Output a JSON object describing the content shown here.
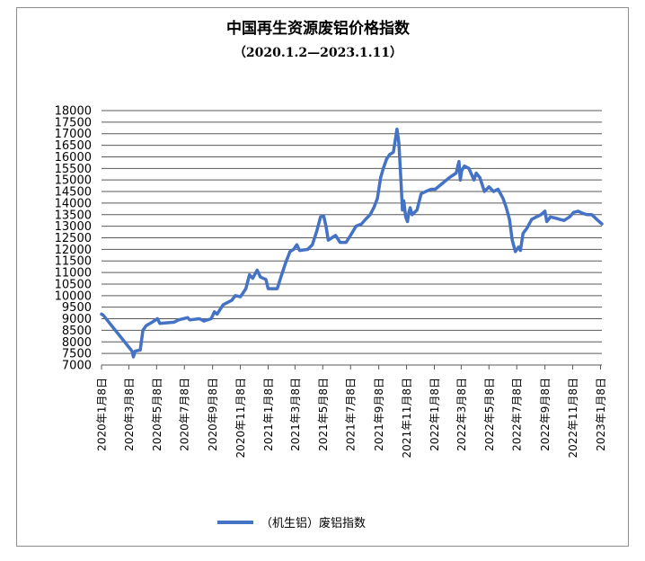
{
  "chart_data": {
    "type": "line",
    "title": "中国再生资源废铝价格指数",
    "subtitle": "（2020.1.2—2023.1.11）",
    "xlabel": "",
    "ylabel": "",
    "ylim": [
      7000,
      18000
    ],
    "yticks": [
      7000,
      7500,
      8000,
      8500,
      9000,
      9500,
      10000,
      10500,
      11000,
      11500,
      12000,
      12500,
      13000,
      13500,
      14000,
      14500,
      15000,
      15500,
      16000,
      16500,
      17000,
      17500,
      18000
    ],
    "x_range": [
      "2020-01-08",
      "2023-01-11"
    ],
    "xticks": [
      {
        "date": "2020-01-08",
        "label": "2020年1月8日"
      },
      {
        "date": "2020-03-08",
        "label": "2020年3月8日"
      },
      {
        "date": "2020-05-08",
        "label": "2020年5月8日"
      },
      {
        "date": "2020-07-08",
        "label": "2020年7月8日"
      },
      {
        "date": "2020-09-08",
        "label": "2020年9月8日"
      },
      {
        "date": "2020-11-08",
        "label": "2020年11月8日"
      },
      {
        "date": "2021-01-08",
        "label": "2021年1月8日"
      },
      {
        "date": "2021-03-08",
        "label": "2021年3月8日"
      },
      {
        "date": "2021-05-08",
        "label": "2021年5月8日"
      },
      {
        "date": "2021-07-08",
        "label": "2021年7月8日"
      },
      {
        "date": "2021-09-08",
        "label": "2021年9月8日"
      },
      {
        "date": "2021-11-08",
        "label": "2021年11月8日"
      },
      {
        "date": "2022-01-08",
        "label": "2022年1月8日"
      },
      {
        "date": "2022-03-08",
        "label": "2022年3月8日"
      },
      {
        "date": "2022-05-08",
        "label": "2022年5月8日"
      },
      {
        "date": "2022-07-08",
        "label": "2022年7月8日"
      },
      {
        "date": "2022-09-08",
        "label": "2022年9月8日"
      },
      {
        "date": "2022-11-08",
        "label": "2022年11月8日"
      },
      {
        "date": "2023-01-08",
        "label": "2023年1月8日"
      }
    ],
    "grid": true,
    "legend_position": "bottom",
    "series": [
      {
        "name": "（机生铝）废铝指数",
        "color": "#4472c4",
        "points": [
          {
            "x": "2020-01-08",
            "y": 9200
          },
          {
            "x": "2020-01-12",
            "y": 9150
          },
          {
            "x": "2020-01-20",
            "y": 8950
          },
          {
            "x": "2020-03-15",
            "y": 7600
          },
          {
            "x": "2020-03-18",
            "y": 7350
          },
          {
            "x": "2020-03-22",
            "y": 7600
          },
          {
            "x": "2020-04-02",
            "y": 7650
          },
          {
            "x": "2020-04-08",
            "y": 8500
          },
          {
            "x": "2020-04-15",
            "y": 8700
          },
          {
            "x": "2020-04-28",
            "y": 8850
          },
          {
            "x": "2020-05-10",
            "y": 9000
          },
          {
            "x": "2020-05-15",
            "y": 8800
          },
          {
            "x": "2020-06-15",
            "y": 8850
          },
          {
            "x": "2020-06-25",
            "y": 8950
          },
          {
            "x": "2020-07-15",
            "y": 9050
          },
          {
            "x": "2020-07-20",
            "y": 8950
          },
          {
            "x": "2020-08-10",
            "y": 9000
          },
          {
            "x": "2020-08-20",
            "y": 8900
          },
          {
            "x": "2020-09-05",
            "y": 9000
          },
          {
            "x": "2020-09-12",
            "y": 9300
          },
          {
            "x": "2020-09-18",
            "y": 9200
          },
          {
            "x": "2020-10-01",
            "y": 9600
          },
          {
            "x": "2020-10-20",
            "y": 9800
          },
          {
            "x": "2020-10-28",
            "y": 10000
          },
          {
            "x": "2020-11-08",
            "y": 9950
          },
          {
            "x": "2020-11-20",
            "y": 10300
          },
          {
            "x": "2020-11-28",
            "y": 10900
          },
          {
            "x": "2020-12-05",
            "y": 10750
          },
          {
            "x": "2020-12-15",
            "y": 11100
          },
          {
            "x": "2020-12-22",
            "y": 10800
          },
          {
            "x": "2021-01-03",
            "y": 10700
          },
          {
            "x": "2021-01-08",
            "y": 10300
          },
          {
            "x": "2021-01-28",
            "y": 10300
          },
          {
            "x": "2021-02-05",
            "y": 10800
          },
          {
            "x": "2021-02-15",
            "y": 11400
          },
          {
            "x": "2021-02-25",
            "y": 11900
          },
          {
            "x": "2021-03-05",
            "y": 12000
          },
          {
            "x": "2021-03-12",
            "y": 12200
          },
          {
            "x": "2021-03-18",
            "y": 11950
          },
          {
            "x": "2021-04-05",
            "y": 12000
          },
          {
            "x": "2021-04-15",
            "y": 12200
          },
          {
            "x": "2021-04-25",
            "y": 12800
          },
          {
            "x": "2021-05-03",
            "y": 13400
          },
          {
            "x": "2021-05-10",
            "y": 13450
          },
          {
            "x": "2021-05-15",
            "y": 13000
          },
          {
            "x": "2021-05-20",
            "y": 12400
          },
          {
            "x": "2021-05-28",
            "y": 12500
          },
          {
            "x": "2021-06-05",
            "y": 12600
          },
          {
            "x": "2021-06-15",
            "y": 12300
          },
          {
            "x": "2021-06-28",
            "y": 12300
          },
          {
            "x": "2021-07-08",
            "y": 12600
          },
          {
            "x": "2021-07-20",
            "y": 13000
          },
          {
            "x": "2021-08-01",
            "y": 13100
          },
          {
            "x": "2021-08-10",
            "y": 13300
          },
          {
            "x": "2021-08-20",
            "y": 13500
          },
          {
            "x": "2021-08-28",
            "y": 13800
          },
          {
            "x": "2021-09-05",
            "y": 14200
          },
          {
            "x": "2021-09-12",
            "y": 15100
          },
          {
            "x": "2021-09-18",
            "y": 15500
          },
          {
            "x": "2021-09-25",
            "y": 15900
          },
          {
            "x": "2021-10-02",
            "y": 16100
          },
          {
            "x": "2021-10-10",
            "y": 16200
          },
          {
            "x": "2021-10-18",
            "y": 17200
          },
          {
            "x": "2021-10-22",
            "y": 16600
          },
          {
            "x": "2021-10-26",
            "y": 15200
          },
          {
            "x": "2021-10-30",
            "y": 13700
          },
          {
            "x": "2021-11-02",
            "y": 14100
          },
          {
            "x": "2021-11-06",
            "y": 13400
          },
          {
            "x": "2021-11-10",
            "y": 13200
          },
          {
            "x": "2021-11-13",
            "y": 13600
          },
          {
            "x": "2021-11-16",
            "y": 13800
          },
          {
            "x": "2021-11-20",
            "y": 13500
          },
          {
            "x": "2021-12-01",
            "y": 13700
          },
          {
            "x": "2021-12-10",
            "y": 14400
          },
          {
            "x": "2021-12-20",
            "y": 14500
          },
          {
            "x": "2022-01-01",
            "y": 14600
          },
          {
            "x": "2022-01-10",
            "y": 14600
          },
          {
            "x": "2022-02-10",
            "y": 15100
          },
          {
            "x": "2022-02-25",
            "y": 15300
          },
          {
            "x": "2022-03-03",
            "y": 15800
          },
          {
            "x": "2022-03-06",
            "y": 15000
          },
          {
            "x": "2022-03-09",
            "y": 15400
          },
          {
            "x": "2022-03-15",
            "y": 15600
          },
          {
            "x": "2022-03-25",
            "y": 15500
          },
          {
            "x": "2022-04-05",
            "y": 15000
          },
          {
            "x": "2022-04-10",
            "y": 15300
          },
          {
            "x": "2022-04-18",
            "y": 15100
          },
          {
            "x": "2022-04-28",
            "y": 14500
          },
          {
            "x": "2022-05-08",
            "y": 14700
          },
          {
            "x": "2022-05-18",
            "y": 14500
          },
          {
            "x": "2022-05-28",
            "y": 14600
          },
          {
            "x": "2022-06-08",
            "y": 14200
          },
          {
            "x": "2022-06-15",
            "y": 13800
          },
          {
            "x": "2022-06-22",
            "y": 13300
          },
          {
            "x": "2022-06-28",
            "y": 12400
          },
          {
            "x": "2022-07-05",
            "y": 11900
          },
          {
            "x": "2022-07-12",
            "y": 12100
          },
          {
            "x": "2022-07-16",
            "y": 11950
          },
          {
            "x": "2022-07-22",
            "y": 12700
          },
          {
            "x": "2022-07-30",
            "y": 12900
          },
          {
            "x": "2022-08-10",
            "y": 13300
          },
          {
            "x": "2022-08-20",
            "y": 13400
          },
          {
            "x": "2022-08-30",
            "y": 13500
          },
          {
            "x": "2022-09-08",
            "y": 13650
          },
          {
            "x": "2022-09-12",
            "y": 13200
          },
          {
            "x": "2022-09-20",
            "y": 13400
          },
          {
            "x": "2022-10-01",
            "y": 13350
          },
          {
            "x": "2022-10-10",
            "y": 13300
          },
          {
            "x": "2022-10-20",
            "y": 13250
          },
          {
            "x": "2022-11-01",
            "y": 13400
          },
          {
            "x": "2022-11-10",
            "y": 13600
          },
          {
            "x": "2022-11-20",
            "y": 13650
          },
          {
            "x": "2022-12-01",
            "y": 13550
          },
          {
            "x": "2022-12-10",
            "y": 13500
          },
          {
            "x": "2022-12-20",
            "y": 13500
          },
          {
            "x": "2023-01-05",
            "y": 13200
          },
          {
            "x": "2023-01-11",
            "y": 13100
          }
        ]
      }
    ]
  }
}
